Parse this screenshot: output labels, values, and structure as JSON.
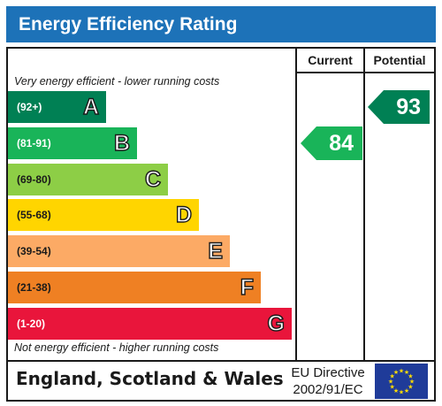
{
  "title": "Energy Efficiency Rating",
  "headers": {
    "current": "Current",
    "potential": "Potential"
  },
  "top_caption": "Very energy efficient - lower running costs",
  "bottom_caption": "Not energy efficient - higher running costs",
  "footer": {
    "country": "England, Scotland & Wales",
    "directive_line1": "EU Directive",
    "directive_line2": "2002/91/EC",
    "flag_icon": "eu-flag-icon"
  },
  "chart_data": {
    "type": "bar",
    "bands": [
      {
        "letter": "A",
        "range": "(92+)",
        "color": "#008054"
      },
      {
        "letter": "B",
        "range": "(81-91)",
        "color": "#19b459"
      },
      {
        "letter": "C",
        "range": "(69-80)",
        "color": "#8dce46"
      },
      {
        "letter": "D",
        "range": "(55-68)",
        "color": "#ffd500"
      },
      {
        "letter": "E",
        "range": "(39-54)",
        "color": "#fcaa65"
      },
      {
        "letter": "F",
        "range": "(21-38)",
        "color": "#ef8023"
      },
      {
        "letter": "G",
        "range": "(1-20)",
        "color": "#e9153b"
      }
    ],
    "current": {
      "value": 84,
      "band": "B",
      "color": "#19b459"
    },
    "potential": {
      "value": 93,
      "band": "A",
      "color": "#008054"
    }
  }
}
